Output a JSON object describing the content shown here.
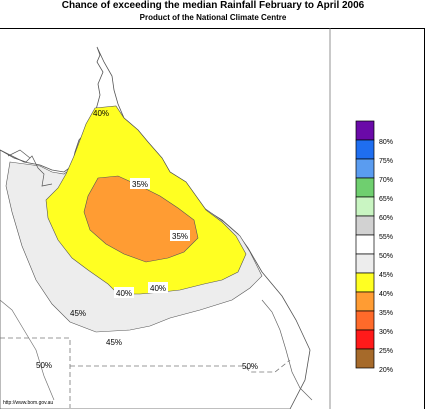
{
  "header": {
    "title": "Chance of exceeding the median Rainfall February to April 2006",
    "subtitle": "Product of the National Climate Centre"
  },
  "map_labels": {
    "cape_top": "40%",
    "inner_north": "35%",
    "inner_east": "35%",
    "south_left": "40%",
    "south_right": "40%",
    "outer_west": "45%",
    "outer_south": "45%",
    "sw_corner": "50%",
    "se_corner": "50%"
  },
  "legend": {
    "classes": [
      {
        "label": "80%",
        "color": "#6a0aa8"
      },
      {
        "label": "75%",
        "color": "#1f6ef0"
      },
      {
        "label": "70%",
        "color": "#5a9cf0"
      },
      {
        "label": "65%",
        "color": "#6fcf6f"
      },
      {
        "label": "60%",
        "color": "#c9f5c2"
      },
      {
        "label": "55%",
        "color": "#d2d2d2"
      },
      {
        "label": "50%",
        "color": "#ffffff"
      },
      {
        "label": "45%",
        "color": "#ededed"
      },
      {
        "label": "40%",
        "color": "#ffff22"
      },
      {
        "label": "35%",
        "color": "#ff9c33"
      },
      {
        "label": "30%",
        "color": "#ff6a2a"
      },
      {
        "label": "25%",
        "color": "#ff1a1a"
      },
      {
        "label": "20%",
        "color": "#a66a2a"
      }
    ]
  },
  "footer": {
    "url": "http://www.bom.gov.au"
  },
  "colors": {
    "yellow": "#ffff22",
    "orange": "#ff9c33",
    "grey": "#ededed",
    "coast": "#555555"
  }
}
